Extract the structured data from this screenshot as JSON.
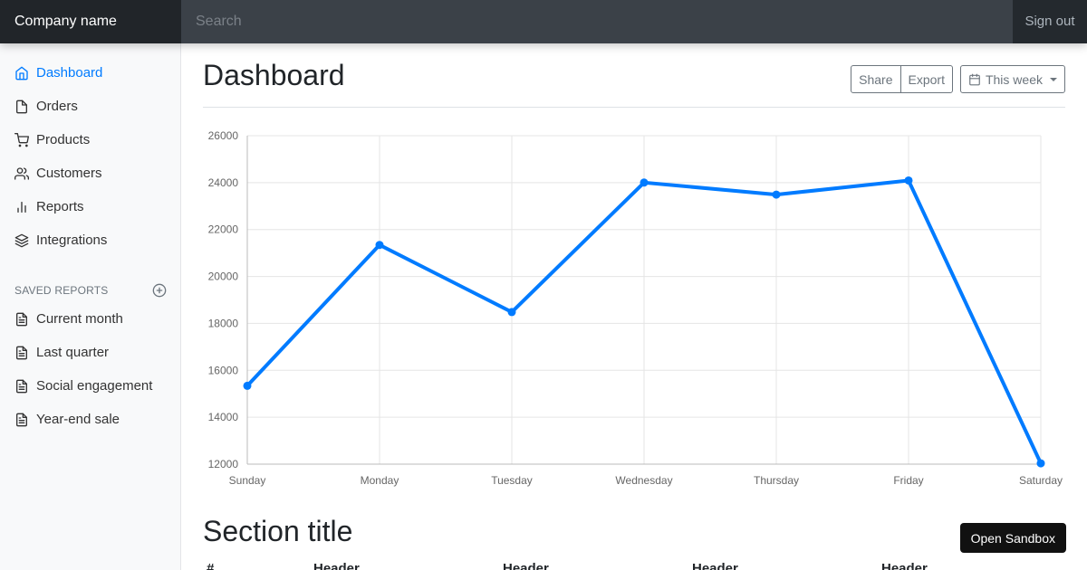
{
  "navbar": {
    "brand": "Company name",
    "search_placeholder": "Search",
    "sign_out": "Sign out"
  },
  "sidebar": {
    "items": [
      {
        "label": "Dashboard",
        "icon": "home-icon",
        "active": true
      },
      {
        "label": "Orders",
        "icon": "file-icon"
      },
      {
        "label": "Products",
        "icon": "shopping-cart-icon"
      },
      {
        "label": "Customers",
        "icon": "users-icon"
      },
      {
        "label": "Reports",
        "icon": "bar-chart-icon"
      },
      {
        "label": "Integrations",
        "icon": "layers-icon"
      }
    ],
    "saved_heading": "SAVED REPORTS",
    "saved_items": [
      {
        "label": "Current month",
        "icon": "file-text-icon"
      },
      {
        "label": "Last quarter",
        "icon": "file-text-icon"
      },
      {
        "label": "Social engagement",
        "icon": "file-text-icon"
      },
      {
        "label": "Year-end sale",
        "icon": "file-text-icon"
      }
    ]
  },
  "main": {
    "title": "Dashboard",
    "share_label": "Share",
    "export_label": "Export",
    "range_label": "This week",
    "section_title": "Section title",
    "sandbox_label": "Open Sandbox",
    "table_headers": [
      "#",
      "Header",
      "Header",
      "Header",
      "Header"
    ]
  },
  "colors": {
    "accent": "#007bff",
    "navbar": "#343a40",
    "brand_bg": "#212529"
  },
  "chart_data": {
    "type": "line",
    "categories": [
      "Sunday",
      "Monday",
      "Tuesday",
      "Wednesday",
      "Thursday",
      "Friday",
      "Saturday"
    ],
    "series": [
      {
        "values": [
          15339,
          21345,
          18483,
          24003,
          23489,
          24092,
          12034
        ]
      }
    ],
    "ylim": [
      12000,
      26000
    ],
    "yticks": [
      12000,
      14000,
      16000,
      18000,
      20000,
      22000,
      24000,
      26000
    ],
    "grid": true,
    "legend": "none",
    "line_color": "#007bff"
  }
}
